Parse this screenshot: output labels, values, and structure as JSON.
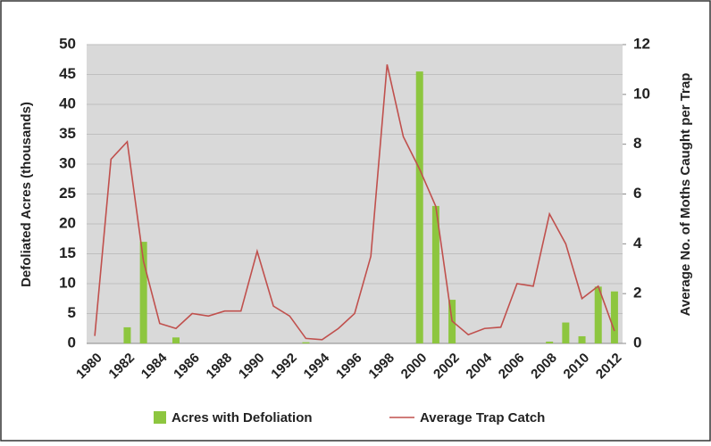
{
  "chart_data": {
    "type": "bar_line",
    "categories": [
      "1980",
      null,
      "1982",
      null,
      "1984",
      null,
      "1986",
      null,
      "1988",
      null,
      "1990",
      null,
      "1992",
      null,
      "1994",
      null,
      "1996",
      null,
      "1998",
      null,
      "2000",
      null,
      "2002",
      null,
      "2004",
      null,
      "2006",
      null,
      "2008",
      null,
      "2010",
      null,
      "2012"
    ],
    "ylabel": "Defoliated Acres (thousands)",
    "y2label": "Average No. of Moths Caught per Trap",
    "ylim": [
      0,
      50
    ],
    "yticks": [
      0,
      5,
      10,
      15,
      20,
      25,
      30,
      35,
      40,
      45,
      50
    ],
    "y2lim": [
      0,
      12
    ],
    "y2ticks": [
      0,
      2,
      4,
      6,
      8,
      10,
      12
    ],
    "grid": true,
    "series": [
      {
        "name": "Acres with Defoliation",
        "type": "bar",
        "color": "#8dc63f",
        "values": [
          0,
          0,
          2.7,
          17,
          0,
          1,
          0,
          0,
          0,
          0,
          0,
          0,
          0,
          0.2,
          0,
          0,
          0,
          0,
          0,
          0,
          45.5,
          23,
          7.3,
          0,
          0,
          0,
          0,
          0,
          0.3,
          3.5,
          1.2,
          9.5,
          8.7
        ]
      },
      {
        "name": "Average Trap Catch",
        "type": "line",
        "axis": "y2",
        "color": "#c0504d",
        "values": [
          0.3,
          7.4,
          8.1,
          3.3,
          0.8,
          0.6,
          1.2,
          1.1,
          1.3,
          1.3,
          3.7,
          1.5,
          1.1,
          0.2,
          0.15,
          0.6,
          1.2,
          3.5,
          11.2,
          8.3,
          7.0,
          5.5,
          0.9,
          0.35,
          0.6,
          0.65,
          2.4,
          2.3,
          5.2,
          4.0,
          1.8,
          2.3,
          0.5
        ]
      }
    ]
  }
}
